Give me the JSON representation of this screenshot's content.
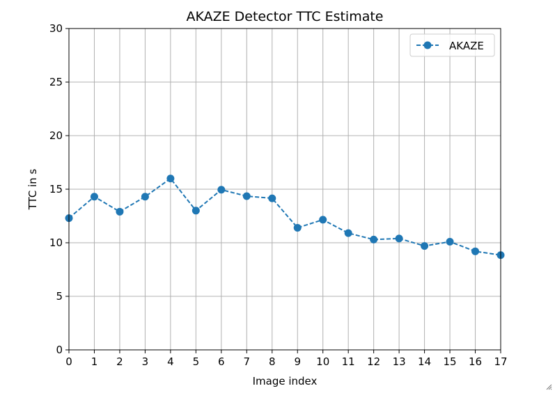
{
  "chart_data": {
    "type": "line",
    "title": "AKAZE Detector TTC Estimate",
    "xlabel": "Image index",
    "ylabel": "TTC in s",
    "x": [
      0,
      1,
      2,
      3,
      4,
      5,
      6,
      7,
      8,
      9,
      10,
      11,
      12,
      13,
      14,
      15,
      16,
      17
    ],
    "series": [
      {
        "name": "AKAZE",
        "values": [
          12.3,
          14.3,
          12.9,
          14.3,
          16.0,
          13.0,
          14.95,
          14.35,
          14.15,
          11.4,
          12.15,
          10.9,
          10.3,
          10.4,
          9.7,
          10.1,
          9.2,
          8.85
        ],
        "color": "#1f77b4",
        "linestyle": "dashed",
        "marker": "circle"
      }
    ],
    "xlim": [
      0,
      17
    ],
    "ylim": [
      0,
      30
    ],
    "xticks": [
      "0",
      "1",
      "2",
      "3",
      "4",
      "5",
      "6",
      "7",
      "8",
      "9",
      "10",
      "11",
      "12",
      "13",
      "14",
      "15",
      "16",
      "17"
    ],
    "yticks": [
      "0",
      "5",
      "10",
      "15",
      "20",
      "25",
      "30"
    ],
    "grid": true,
    "legend_position": "top-right"
  },
  "ui": {
    "resize_icon": "resize-grip-icon"
  }
}
